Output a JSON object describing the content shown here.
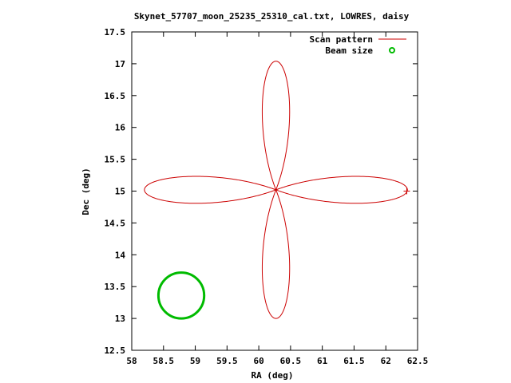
{
  "chart_data": {
    "type": "line",
    "title": "Skynet_57707_moon_25235_25310_cal.txt, LOWRES, daisy",
    "xlabel": "RA (deg)",
    "ylabel": "Dec (deg)",
    "xlim": [
      58,
      62.5
    ],
    "ylim": [
      12.5,
      17.5
    ],
    "xticks": [
      "58",
      "58.5",
      "59",
      "59.5",
      "60",
      "60.5",
      "61",
      "61.5",
      "62",
      "62.5"
    ],
    "yticks": [
      "12.5",
      "13",
      "13.5",
      "14",
      "14.5",
      "15",
      "15.5",
      "16",
      "16.5",
      "17",
      "17.5"
    ],
    "grid": false,
    "legend_position": "top-right",
    "series": [
      {
        "name": "Scan pattern",
        "kind": "line",
        "color": "#cc0000",
        "shape": "four-petal daisy (rose curve)",
        "center": [
          60.27,
          15.02
        ],
        "petal_extent": {
          "ra_offset": 2.07,
          "dec_offset": 2.02
        },
        "petal_half_width": {
          "ra": 0.55,
          "dec": 0.56
        },
        "extremes": {
          "ra_min": 58.2,
          "ra_max": 62.34,
          "dec_min": 13.0,
          "dec_max": 17.04
        },
        "end_marker": [
          62.33,
          15.0
        ]
      },
      {
        "name": "Beam size",
        "kind": "circle",
        "color": "#00bb00",
        "center": [
          58.78,
          13.36
        ],
        "radius": 0.36
      }
    ]
  }
}
